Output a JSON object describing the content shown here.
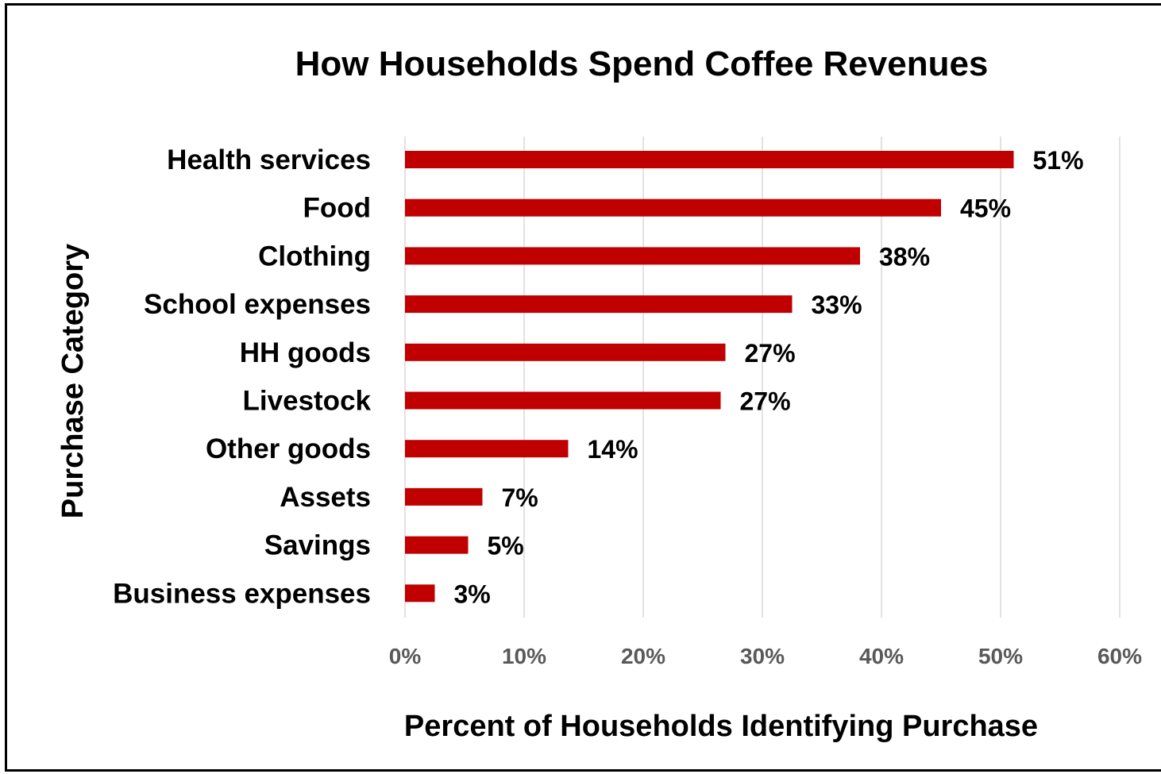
{
  "chart_data": {
    "type": "bar",
    "orientation": "horizontal",
    "title": "How Households Spend Coffee Revenues",
    "xlabel": "Percent of Households Identifying Purchase",
    "ylabel": "Purchase Category",
    "categories": [
      "Health services",
      "Food",
      "Clothing",
      "School expenses",
      "HH goods",
      "Livestock",
      "Other goods",
      "Assets",
      "Savings",
      "Business expenses"
    ],
    "values": [
      51,
      45,
      38,
      33,
      27,
      27,
      14,
      7,
      5,
      3
    ],
    "bar_values": [
      51.1,
      45.0,
      38.2,
      32.5,
      26.9,
      26.5,
      13.7,
      6.5,
      5.3,
      2.5
    ],
    "value_labels": [
      "51%",
      "45%",
      "38%",
      "33%",
      "27%",
      "27%",
      "14%",
      "7%",
      "5%",
      "3%"
    ],
    "xlim": [
      0,
      60
    ],
    "x_ticks": [
      0,
      10,
      20,
      30,
      40,
      50,
      60
    ],
    "x_tick_labels": [
      "0%",
      "10%",
      "20%",
      "30%",
      "40%",
      "50%",
      "60%"
    ],
    "grid": "vertical",
    "legend": "none",
    "bar_color": "#C00000"
  }
}
